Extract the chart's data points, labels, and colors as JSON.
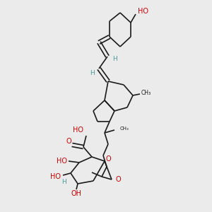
{
  "bg_color": "#ebebeb",
  "bond_color": "#1a1a1a",
  "red_color": "#cc0000",
  "teal_color": "#4d9999",
  "figsize": [
    3.0,
    3.0
  ],
  "dpi": 100,
  "lw": 1.2,
  "xlim": [
    0,
    300
  ],
  "ylim": [
    0,
    300
  ]
}
